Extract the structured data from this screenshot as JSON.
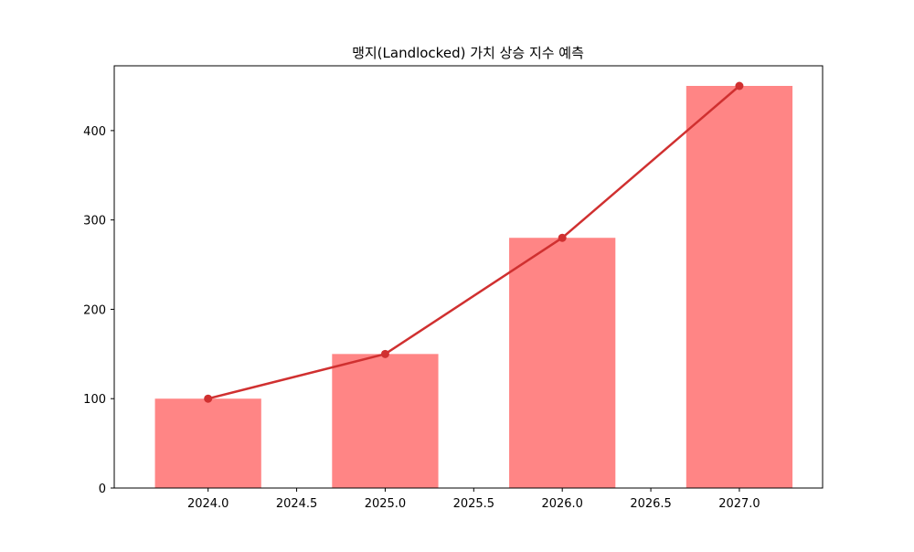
{
  "chart_data": {
    "type": "bar",
    "title": "맹지(Landlocked) 가치 상승 지수 예측",
    "xlabel": "",
    "ylabel": "",
    "x": [
      2024,
      2025,
      2026,
      2027
    ],
    "values": [
      100,
      150,
      280,
      450
    ],
    "line_values": [
      100,
      150,
      280,
      450
    ],
    "bar_width": 0.6,
    "xlim": [
      2023.47,
      2027.47
    ],
    "ylim": [
      0,
      472.5
    ],
    "xticks": [
      2024.0,
      2024.5,
      2025.0,
      2025.5,
      2026.0,
      2026.5,
      2027.0
    ],
    "xtick_labels": [
      "2024.0",
      "2024.5",
      "2025.0",
      "2025.5",
      "2026.0",
      "2026.5",
      "2027.0"
    ],
    "yticks": [
      0,
      100,
      200,
      300,
      400
    ],
    "ytick_labels": [
      "0",
      "100",
      "200",
      "300",
      "400"
    ],
    "grid": false,
    "bar_color": "#ff8585",
    "line_color": "#d03030"
  }
}
